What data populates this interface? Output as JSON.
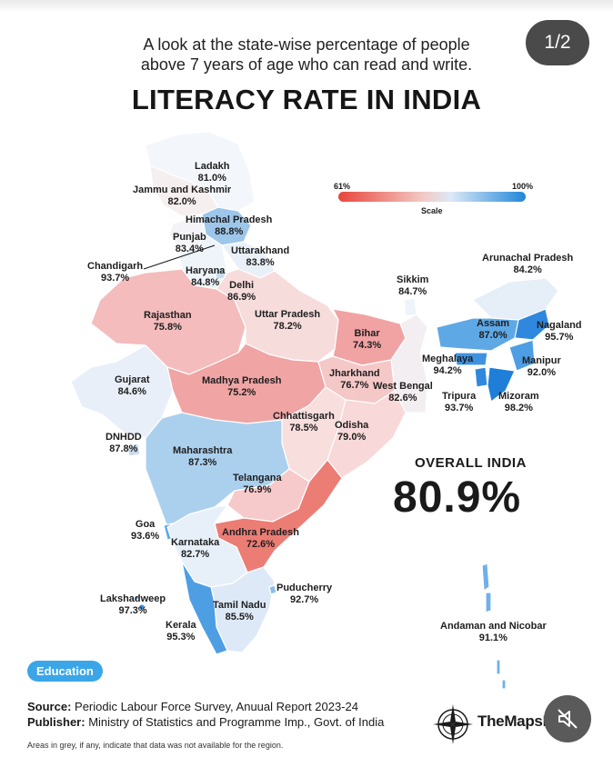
{
  "header": {
    "subtitle_line1": "A look at the state-wise percentage of people",
    "subtitle_line2": "above 7 years of age who can read and write.",
    "title": "LITERACY RATE IN INDIA",
    "page_indicator": "1/2"
  },
  "scale": {
    "min_label": "61%",
    "max_label": "100%",
    "caption": "Scale",
    "low_color": "#e8453b",
    "high_color": "#1f86d8"
  },
  "regions": [
    {
      "name": "Ladakh",
      "value": "81.0%"
    },
    {
      "name": "Jammu and Kashmir",
      "value": "82.0%"
    },
    {
      "name": "Himachal Pradesh",
      "value": "88.8%"
    },
    {
      "name": "Punjab",
      "value": "83.4%"
    },
    {
      "name": "Uttarakhand",
      "value": "83.8%"
    },
    {
      "name": "Chandigarh",
      "value": "93.7%"
    },
    {
      "name": "Haryana",
      "value": "84.8%"
    },
    {
      "name": "Delhi",
      "value": "86.9%"
    },
    {
      "name": "Rajasthan",
      "value": "75.8%"
    },
    {
      "name": "Uttar Pradesh",
      "value": "78.2%"
    },
    {
      "name": "Sikkim",
      "value": "84.7%"
    },
    {
      "name": "Arunachal Pradesh",
      "value": "84.2%"
    },
    {
      "name": "Bihar",
      "value": "74.3%"
    },
    {
      "name": "Assam",
      "value": "87.0%"
    },
    {
      "name": "Nagaland",
      "value": "95.7%"
    },
    {
      "name": "Meghalaya",
      "value": "94.2%"
    },
    {
      "name": "Manipur",
      "value": "92.0%"
    },
    {
      "name": "Gujarat",
      "value": "84.6%"
    },
    {
      "name": "Madhya Pradesh",
      "value": "75.2%"
    },
    {
      "name": "Jharkhand",
      "value": "76.7%"
    },
    {
      "name": "West Bengal",
      "value": "82.6%"
    },
    {
      "name": "Tripura",
      "value": "93.7%"
    },
    {
      "name": "Mizoram",
      "value": "98.2%"
    },
    {
      "name": "Chhattisgarh",
      "value": "78.5%"
    },
    {
      "name": "Odisha",
      "value": "79.0%"
    },
    {
      "name": "DNHDD",
      "value": "87.8%"
    },
    {
      "name": "Maharashtra",
      "value": "87.3%"
    },
    {
      "name": "Telangana",
      "value": "76.9%"
    },
    {
      "name": "Goa",
      "value": "93.6%"
    },
    {
      "name": "Andhra Pradesh",
      "value": "72.6%"
    },
    {
      "name": "Karnataka",
      "value": "82.7%"
    },
    {
      "name": "Puducherry",
      "value": "92.7%"
    },
    {
      "name": "Lakshadweep",
      "value": "97.3%"
    },
    {
      "name": "Tamil Nadu",
      "value": "85.5%"
    },
    {
      "name": "Kerala",
      "value": "95.3%"
    },
    {
      "name": "Andaman and Nicobar",
      "value": "91.1%"
    }
  ],
  "overall": {
    "label": "OVERALL INDIA",
    "value": "80.9%"
  },
  "footer": {
    "tag": "Education",
    "source_label": "Source:",
    "source_text": "Periodic Labour Force Survey, Anuual Report 2023-24",
    "publisher_label": "Publisher:",
    "publisher_text": "Ministry of Statistics and Programme Imp., Govt. of India",
    "note": "Areas in grey, if any, indicate that data was not available for the region.",
    "brand": "TheMapsDaily",
    "icons": [
      "compass-icon",
      "mute-icon"
    ]
  }
}
